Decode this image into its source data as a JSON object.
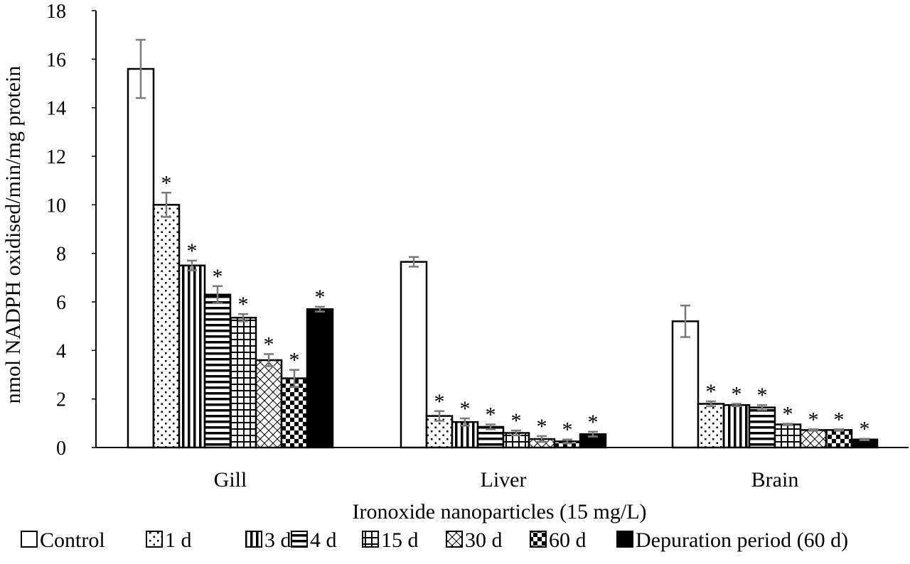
{
  "chart_data": {
    "type": "bar",
    "xlabel": "Ironoxide nanoparticles (15 mg/L)",
    "ylabel": "nmol NADPH oxidised/min/mg protein",
    "ylim": [
      0,
      18
    ],
    "yticks": [
      0,
      2,
      4,
      6,
      8,
      10,
      12,
      14,
      16,
      18
    ],
    "grid": false,
    "legend_position": "bottom",
    "categories": [
      "Gill",
      "Liver",
      "Brain"
    ],
    "significance_marker": "*",
    "series": [
      {
        "name": "Control",
        "pattern": "none",
        "values": [
          15.6,
          7.65,
          5.2
        ],
        "errors": [
          1.2,
          0.2,
          0.65
        ],
        "significant": [
          false,
          false,
          false
        ]
      },
      {
        "name": "1 d",
        "pattern": "dots",
        "values": [
          10.0,
          1.3,
          1.8
        ],
        "errors": [
          0.5,
          0.2,
          0.1
        ],
        "significant": [
          true,
          true,
          true
        ]
      },
      {
        "name": "3 d",
        "pattern": "vertical",
        "values": [
          7.5,
          1.05,
          1.75
        ],
        "errors": [
          0.2,
          0.15,
          0.05
        ],
        "significant": [
          true,
          true,
          true
        ]
      },
      {
        "name": "4 d",
        "pattern": "horizontal",
        "values": [
          6.3,
          0.85,
          1.65
        ],
        "errors": [
          0.35,
          0.1,
          0.1
        ],
        "significant": [
          true,
          true,
          true
        ]
      },
      {
        "name": "15 d",
        "pattern": "grid",
        "values": [
          5.35,
          0.6,
          0.95
        ],
        "errors": [
          0.15,
          0.1,
          0.03
        ],
        "significant": [
          true,
          true,
          true
        ]
      },
      {
        "name": "30 d",
        "pattern": "diagonal",
        "values": [
          3.6,
          0.35,
          0.72
        ],
        "errors": [
          0.25,
          0.12,
          0.03
        ],
        "significant": [
          true,
          true,
          true
        ]
      },
      {
        "name": "60 d",
        "pattern": "checker",
        "values": [
          2.85,
          0.25,
          0.72
        ],
        "errors": [
          0.35,
          0.08,
          0.03
        ],
        "significant": [
          true,
          true,
          true
        ]
      },
      {
        "name": "Depuration period (60 d)",
        "pattern": "solid",
        "values": [
          5.7,
          0.55,
          0.33
        ],
        "errors": [
          0.1,
          0.1,
          0.03
        ],
        "significant": [
          true,
          true,
          true
        ]
      }
    ],
    "colors": {
      "stroke": "#000000",
      "fill": "#000000",
      "background": "#ffffff",
      "error_bar": "#7a7a7a"
    }
  }
}
